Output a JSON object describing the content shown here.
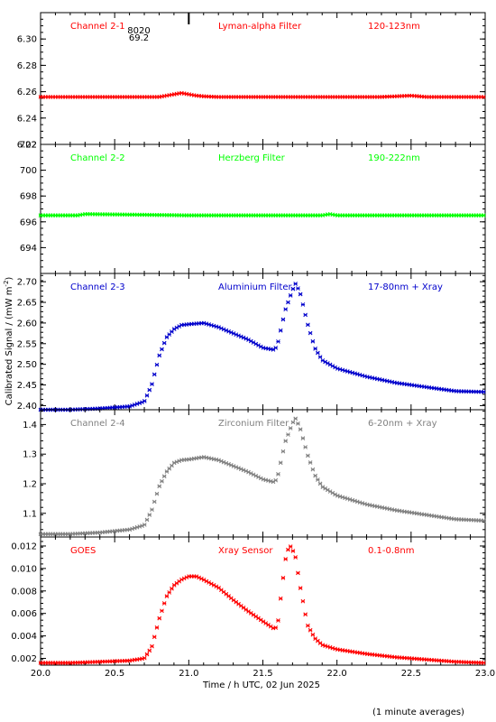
{
  "chart_data": {
    "type": "scatter",
    "xlabel": "Time / h UTC, 02 Jun 2025",
    "ylabel": "Calibrated Signal / (mW m",
    "ylabel_sup": "-2",
    "ylabel_end": ")",
    "footnote": "(1 minute averages)",
    "xlim": [
      20.0,
      23.0
    ],
    "xticks": [
      "20.0",
      "20.5",
      "21.0",
      "21.5",
      "22.0",
      "22.5",
      "23.0"
    ],
    "marker_annotation": {
      "x": 21.0,
      "line1": "8020",
      "line2": "69.2"
    },
    "panels": [
      {
        "channel": "Channel 2-1",
        "filter": "Lyman-alpha Filter",
        "band": "120-123nm",
        "color": "#ff0000",
        "ylim": [
          6.22,
          6.32
        ],
        "yticks": [
          "6.22",
          "6.24",
          "6.26",
          "6.28",
          "6.30"
        ],
        "series": {
          "x": [
            20.0,
            20.8,
            20.85,
            20.9,
            20.95,
            21.0,
            21.05,
            21.1,
            21.2,
            22.3,
            22.5,
            22.6,
            22.8,
            23.0
          ],
          "y": [
            6.256,
            6.256,
            6.257,
            6.258,
            6.259,
            6.258,
            6.257,
            6.2565,
            6.256,
            6.256,
            6.257,
            6.256,
            6.256,
            6.256
          ]
        }
      },
      {
        "channel": "Channel 2-2",
        "filter": "Herzberg Filter",
        "band": "190-222nm",
        "color": "#00ff00",
        "ylim": [
          692,
          702
        ],
        "yticks": [
          "694",
          "696",
          "698",
          "700",
          "702"
        ],
        "series": {
          "x": [
            20.0,
            20.25,
            20.3,
            21.0,
            21.9,
            21.95,
            22.0,
            23.0
          ],
          "y": [
            696.5,
            696.5,
            696.6,
            696.5,
            696.5,
            696.6,
            696.5,
            696.5
          ]
        }
      },
      {
        "channel": "Channel 2-3",
        "filter": "Aluminium Filter",
        "band": "17-80nm + Xray",
        "color": "#0000cc",
        "ylim": [
          2.39,
          2.72
        ],
        "yticks": [
          "2.40",
          "2.45",
          "2.50",
          "2.55",
          "2.60",
          "2.65",
          "2.70"
        ],
        "series": {
          "x": [
            20.0,
            20.2,
            20.4,
            20.6,
            20.7,
            20.75,
            20.8,
            20.85,
            20.9,
            20.95,
            21.0,
            21.1,
            21.2,
            21.3,
            21.4,
            21.5,
            21.58,
            21.6,
            21.65,
            21.7,
            21.72,
            21.75,
            21.8,
            21.85,
            21.9,
            22.0,
            22.2,
            22.4,
            22.6,
            22.8,
            23.0
          ],
          "y": [
            2.39,
            2.39,
            2.393,
            2.398,
            2.41,
            2.45,
            2.52,
            2.565,
            2.585,
            2.595,
            2.597,
            2.6,
            2.59,
            2.575,
            2.56,
            2.54,
            2.535,
            2.55,
            2.63,
            2.68,
            2.695,
            2.675,
            2.6,
            2.54,
            2.51,
            2.49,
            2.47,
            2.455,
            2.445,
            2.435,
            2.433
          ]
        }
      },
      {
        "channel": "Channel 2-4",
        "filter": "Zirconium Filter",
        "band": "6-20nm + Xray",
        "color": "#808080",
        "ylim": [
          1.02,
          1.45
        ],
        "yticks": [
          "1.1",
          "1.2",
          "1.3",
          "1.4"
        ],
        "series": {
          "x": [
            20.0,
            20.2,
            20.4,
            20.6,
            20.7,
            20.75,
            20.8,
            20.85,
            20.9,
            20.95,
            21.0,
            21.1,
            21.2,
            21.3,
            21.4,
            21.5,
            21.58,
            21.6,
            21.65,
            21.7,
            21.72,
            21.75,
            21.8,
            21.85,
            21.9,
            22.0,
            22.2,
            22.4,
            22.6,
            22.8,
            23.0
          ],
          "y": [
            1.03,
            1.03,
            1.035,
            1.045,
            1.06,
            1.11,
            1.19,
            1.24,
            1.27,
            1.28,
            1.282,
            1.29,
            1.28,
            1.26,
            1.24,
            1.215,
            1.205,
            1.225,
            1.34,
            1.405,
            1.42,
            1.39,
            1.3,
            1.23,
            1.19,
            1.16,
            1.13,
            1.11,
            1.095,
            1.08,
            1.075
          ]
        }
      },
      {
        "channel": "GOES",
        "filter": "Xray Sensor",
        "band": "0.1-0.8nm",
        "color": "#ff0000",
        "ylim": [
          0.0014,
          0.0128
        ],
        "yticks": [
          "0.002",
          "0.004",
          "0.006",
          "0.008",
          "0.010",
          "0.012"
        ],
        "series": {
          "x": [
            20.0,
            20.2,
            20.4,
            20.6,
            20.7,
            20.75,
            20.8,
            20.85,
            20.9,
            20.95,
            21.0,
            21.05,
            21.1,
            21.2,
            21.3,
            21.4,
            21.5,
            21.58,
            21.6,
            21.63,
            21.66,
            21.69,
            21.72,
            21.75,
            21.8,
            21.85,
            21.9,
            22.0,
            22.2,
            22.4,
            22.6,
            22.8,
            23.0
          ],
          "y": [
            0.0016,
            0.0016,
            0.0017,
            0.0018,
            0.002,
            0.003,
            0.0055,
            0.0075,
            0.0085,
            0.009,
            0.0093,
            0.0093,
            0.009,
            0.0083,
            0.0072,
            0.0062,
            0.0053,
            0.0046,
            0.005,
            0.0085,
            0.0115,
            0.012,
            0.011,
            0.0085,
            0.005,
            0.0038,
            0.0032,
            0.0028,
            0.0024,
            0.0021,
            0.0019,
            0.0017,
            0.0016
          ]
        }
      }
    ]
  }
}
